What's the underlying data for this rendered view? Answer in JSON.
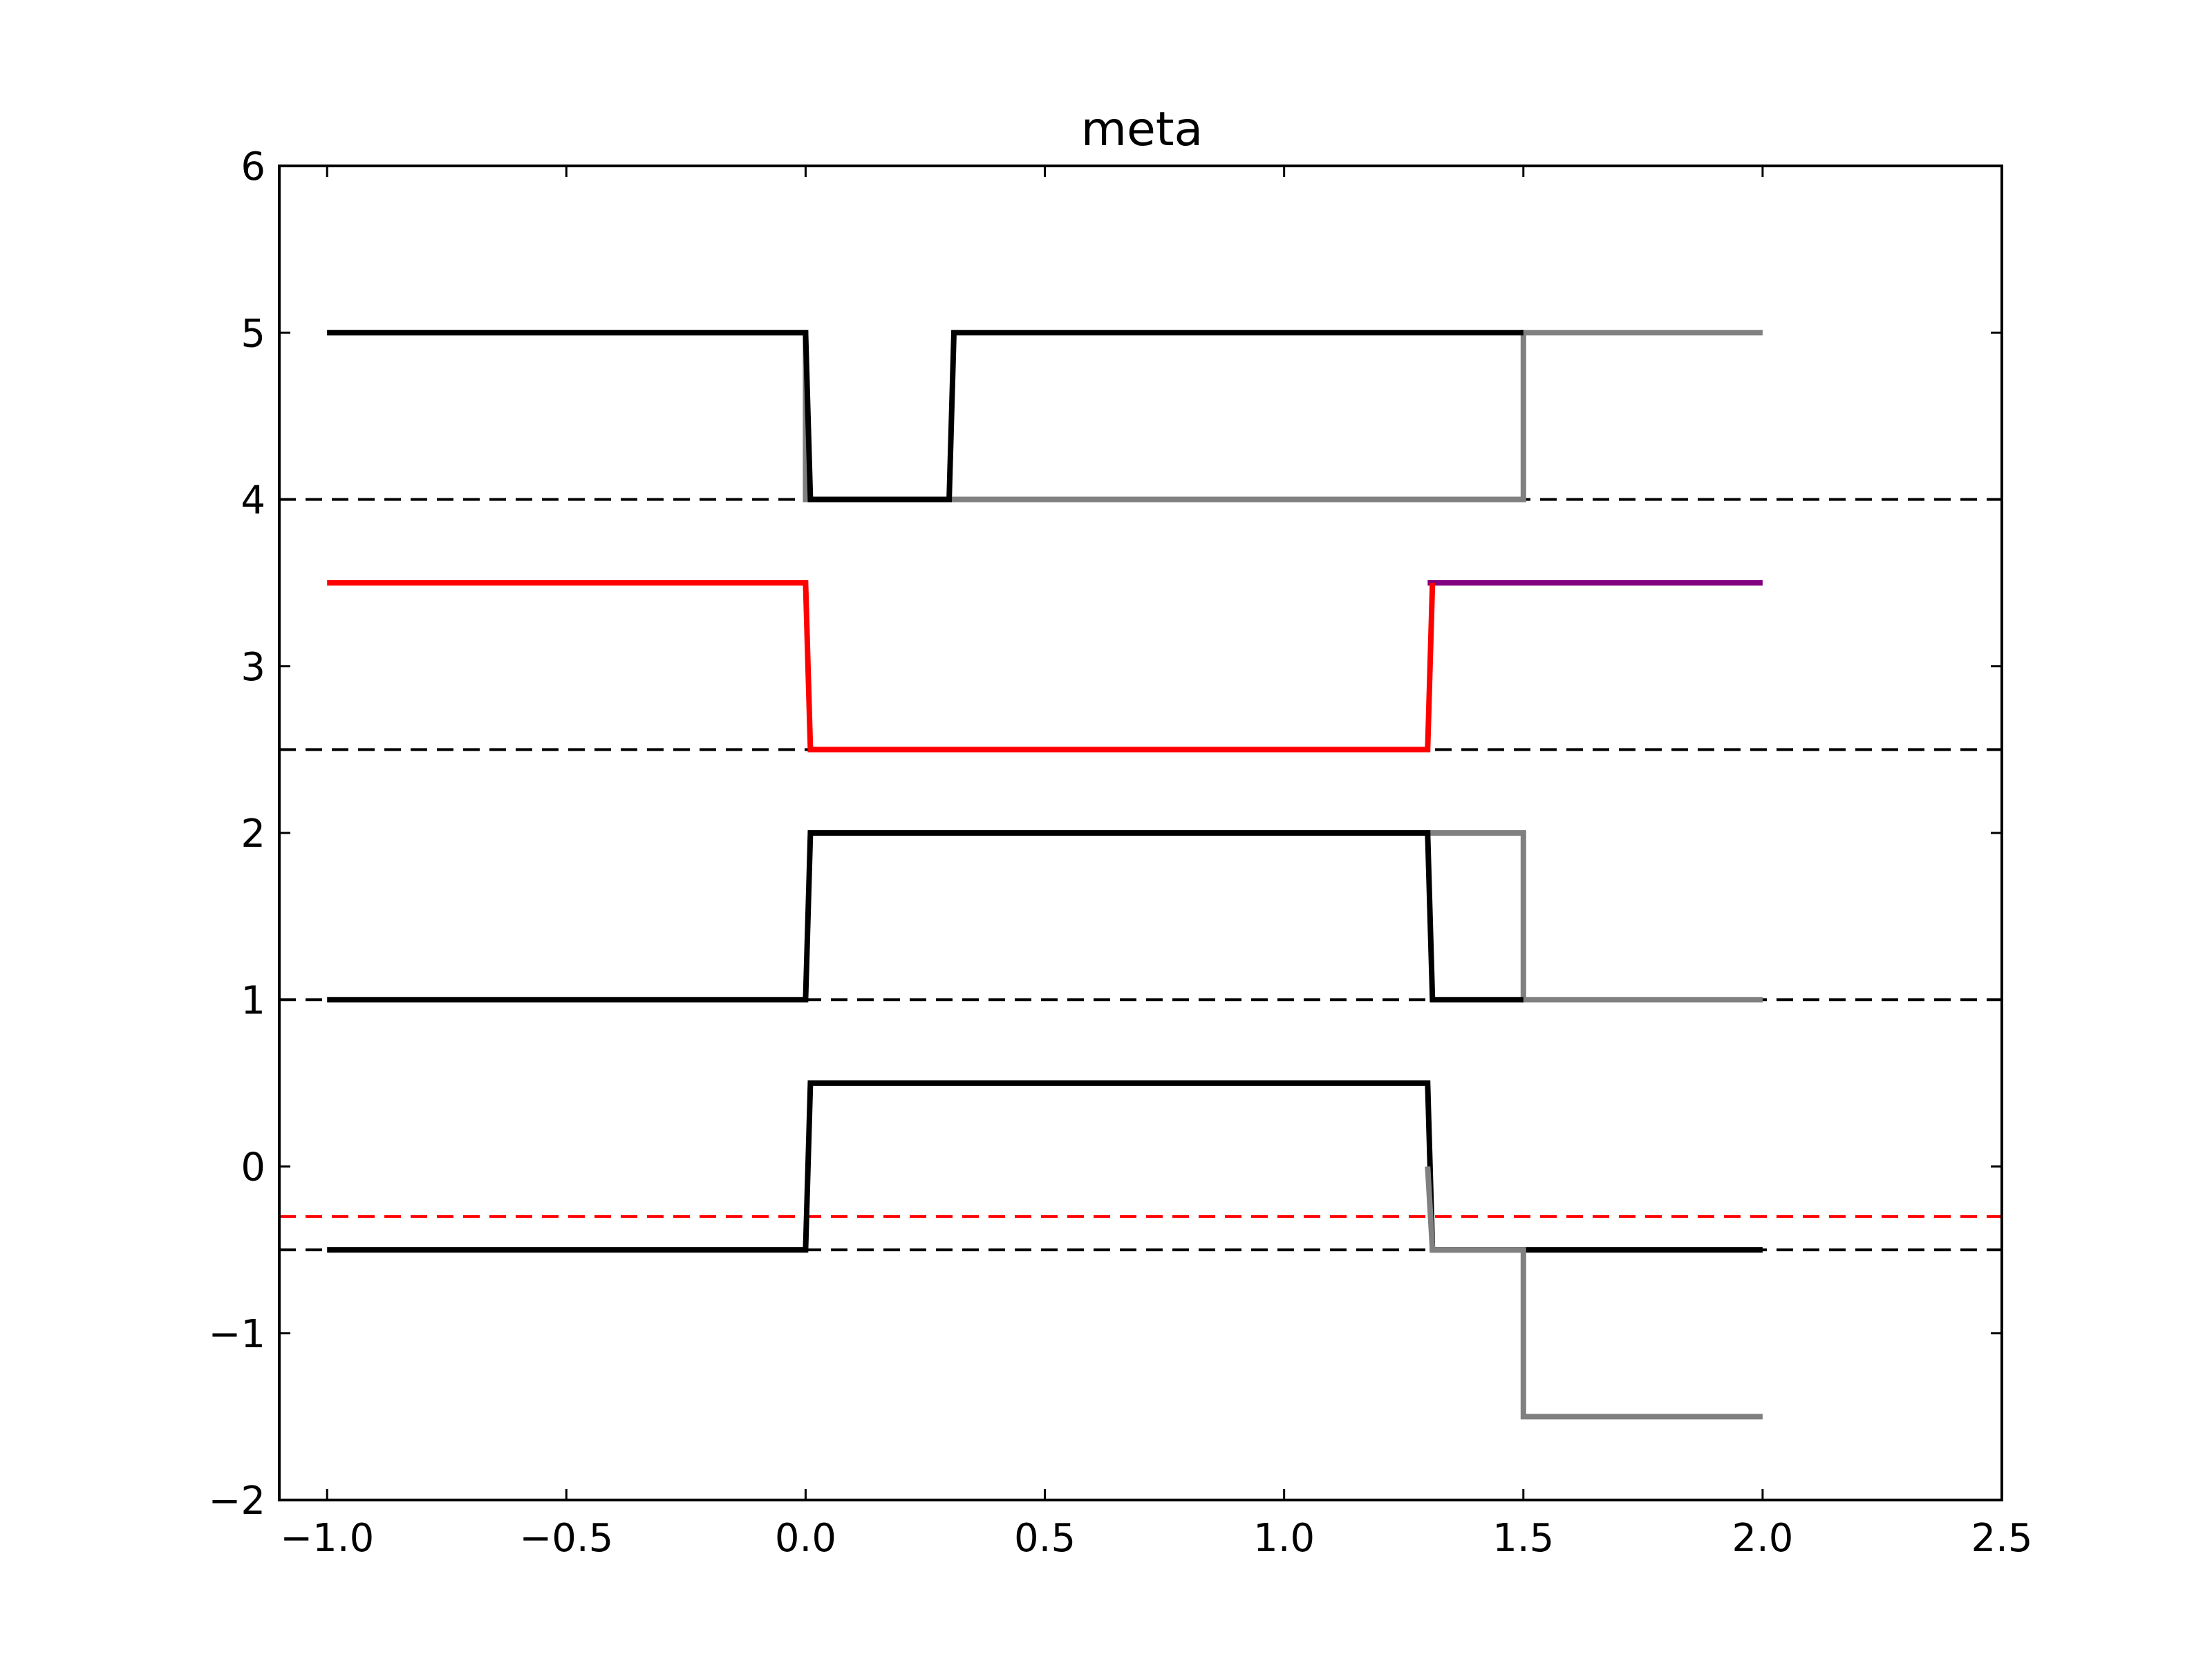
{
  "chart_data": {
    "type": "line",
    "title": "meta",
    "xlabel": "",
    "ylabel": "",
    "xlim": [
      -1.1,
      2.5
    ],
    "ylim": [
      -2,
      6
    ],
    "xticks": [
      -1.0,
      -0.5,
      0.0,
      0.5,
      1.0,
      1.5,
      2.0,
      2.5
    ],
    "xtick_labels": [
      "−1.0",
      "−0.5",
      "0.0",
      "0.5",
      "1.0",
      "1.5",
      "2.0",
      "2.5"
    ],
    "yticks": [
      -2,
      -1,
      0,
      1,
      2,
      3,
      4,
      5,
      6
    ],
    "ytick_labels": [
      "−2",
      "−1",
      "0",
      "1",
      "2",
      "3",
      "4",
      "5",
      "6"
    ],
    "grid": false,
    "series": [
      {
        "color": "#808080",
        "style": "solid",
        "x": [
          -1.0,
          0.0,
          0.0,
          0.3,
          0.3,
          1.5,
          1.5,
          2.0
        ],
        "y": [
          5,
          5,
          4,
          4,
          4,
          4,
          5,
          5
        ]
      },
      {
        "color": "#000000",
        "style": "solid",
        "x": [
          -1.0,
          0.0,
          0.01,
          0.3,
          0.31,
          1.5
        ],
        "y": [
          5,
          5,
          4,
          4,
          5,
          5
        ]
      },
      {
        "color": "#800080",
        "style": "solid",
        "x": [
          1.3,
          2.0
        ],
        "y": [
          3.5,
          3.5
        ]
      },
      {
        "color": "#ff0000",
        "style": "solid",
        "x": [
          -1.0,
          0.0,
          0.01,
          1.3,
          1.31
        ],
        "y": [
          3.5,
          3.5,
          2.5,
          2.5,
          3.5
        ]
      },
      {
        "color": "#808080",
        "style": "solid",
        "x": [
          1.3,
          1.5,
          1.5,
          2.0
        ],
        "y": [
          2,
          2,
          1,
          1
        ]
      },
      {
        "color": "#000000",
        "style": "solid",
        "x": [
          -1.0,
          0.0,
          0.01,
          1.3,
          1.31,
          1.5
        ],
        "y": [
          1,
          1,
          2,
          2,
          1,
          1
        ]
      },
      {
        "color": "#000000",
        "style": "solid",
        "x": [
          -1.0,
          0.0,
          0.01,
          1.3,
          1.31,
          2.0
        ],
        "y": [
          -0.5,
          -0.5,
          0.5,
          0.5,
          -0.5,
          -0.5
        ]
      },
      {
        "color": "#808080",
        "style": "solid",
        "x": [
          1.3,
          1.31,
          1.5,
          1.5,
          2.0
        ],
        "y": [
          0.0,
          -0.5,
          -0.5,
          -1.5,
          -1.5
        ]
      }
    ],
    "hlines": [
      {
        "y": 4.0,
        "color": "#000000",
        "style": "dashed"
      },
      {
        "y": 2.5,
        "color": "#000000",
        "style": "dashed"
      },
      {
        "y": 1.0,
        "color": "#000000",
        "style": "dashed"
      },
      {
        "y": -0.3,
        "color": "#ff0000",
        "style": "dashed"
      },
      {
        "y": -0.5,
        "color": "#000000",
        "style": "dashed"
      }
    ]
  }
}
